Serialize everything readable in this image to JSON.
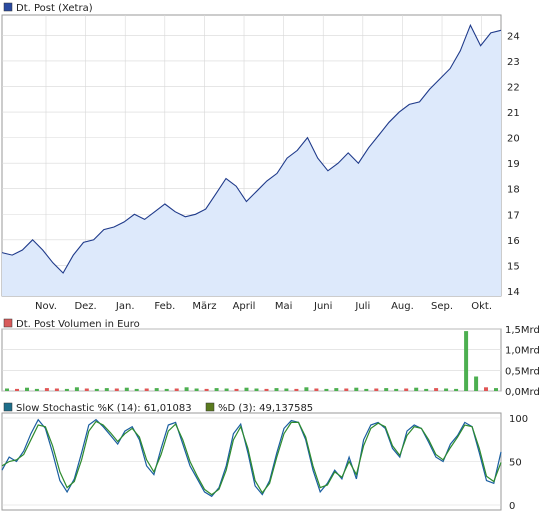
{
  "colors": {
    "price_line": "#1f3a8a",
    "price_fill": "#dde9fb",
    "price_legend_box": "#2a4aa0",
    "volume_legend_box": "#d85a5a",
    "volume_bar_green": "#4caf50",
    "volume_bar_red": "#e05555",
    "stoch_k": "#1a5ea0",
    "stoch_d": "#2e8b2e",
    "stoch_k_legend_box": "#1e6e8a",
    "stoch_d_legend_box": "#5a7a1e",
    "grid": "#d8d8d8",
    "frame": "#9a9a9a"
  },
  "chart_data": [
    {
      "type": "area",
      "title": "Dt. Post (Xetra)",
      "x_tick_labels": [
        "Nov.",
        "Dez.",
        "Jan.",
        "Feb.",
        "März",
        "April",
        "Mai",
        "Juni",
        "Juli",
        "Aug.",
        "Sep.",
        "Okt."
      ],
      "y_ticks": [
        14,
        15,
        16,
        17,
        18,
        19,
        20,
        21,
        22,
        23,
        24
      ],
      "ylim": [
        13.8,
        24.8
      ],
      "grid": true,
      "series": [
        {
          "name": "Dt. Post (Xetra)",
          "x": [
            "Oct",
            "Oct",
            "Nov",
            "Nov",
            "Nov",
            "Nov",
            "Nov",
            "Dez",
            "Dez",
            "Dez",
            "Dez",
            "Jan",
            "Jan",
            "Jan",
            "Jan",
            "Feb",
            "Feb",
            "Feb",
            "Feb",
            "März",
            "März",
            "März",
            "März",
            "April",
            "April",
            "April",
            "April",
            "Mai",
            "Mai",
            "Mai",
            "Mai",
            "Juni",
            "Juni",
            "Juni",
            "Juni",
            "Juli",
            "Juli",
            "Juli",
            "Juli",
            "Aug.",
            "Aug.",
            "Aug.",
            "Aug.",
            "Sep.",
            "Sep.",
            "Sep.",
            "Sep.",
            "Okt.",
            "Okt.",
            "Okt."
          ],
          "values": [
            15.5,
            15.4,
            15.6,
            16.0,
            15.6,
            15.1,
            14.7,
            15.4,
            15.9,
            16.0,
            16.4,
            16.5,
            16.7,
            17.0,
            16.8,
            17.1,
            17.4,
            17.1,
            16.9,
            17.0,
            17.2,
            17.8,
            18.4,
            18.1,
            17.5,
            17.9,
            18.3,
            18.6,
            19.2,
            19.5,
            20.0,
            19.2,
            18.7,
            19.0,
            19.4,
            19.0,
            19.6,
            20.1,
            20.6,
            21.0,
            21.3,
            21.4,
            21.9,
            22.3,
            22.7,
            23.4,
            24.4,
            23.6,
            24.1,
            24.2
          ]
        }
      ]
    },
    {
      "type": "bar",
      "title": "Dt. Post Volumen in Euro",
      "y_ticks": [
        "0,0Mrd",
        "0,5Mrd",
        "1,0Mrd",
        "1,5Mrd"
      ],
      "ylim": [
        0,
        1.5
      ],
      "unit": "Mrd",
      "series": [
        {
          "name": "Dt. Post Volumen in Euro",
          "values": [
            0.06,
            0.05,
            0.08,
            0.05,
            0.07,
            0.06,
            0.05,
            0.09,
            0.06,
            0.05,
            0.07,
            0.06,
            0.08,
            0.05,
            0.06,
            0.07,
            0.05,
            0.06,
            0.09,
            0.06,
            0.05,
            0.07,
            0.06,
            0.05,
            0.08,
            0.06,
            0.05,
            0.07,
            0.06,
            0.05,
            0.09,
            0.06,
            0.05,
            0.07,
            0.06,
            0.08,
            0.05,
            0.06,
            0.07,
            0.05,
            0.06,
            0.08,
            0.05,
            0.07,
            0.06,
            0.05,
            1.45,
            0.35,
            0.09,
            0.07
          ],
          "up": [
            true,
            false,
            true,
            true,
            false,
            false,
            true,
            true,
            false,
            true,
            true,
            false,
            true,
            true,
            false,
            true,
            true,
            false,
            true,
            true,
            false,
            true,
            true,
            false,
            true,
            true,
            false,
            true,
            true,
            false,
            true,
            false,
            true,
            true,
            false,
            true,
            true,
            false,
            true,
            true,
            false,
            true,
            true,
            false,
            true,
            true,
            true,
            true,
            false,
            true
          ]
        }
      ]
    },
    {
      "type": "line",
      "title": "Slow Stochastic",
      "y_ticks": [
        0,
        50,
        100
      ],
      "ylim": [
        0,
        100
      ],
      "series": [
        {
          "name": "Slow Stochastic %K (14): 61,01083",
          "values": [
            40,
            55,
            50,
            62,
            82,
            98,
            88,
            60,
            28,
            15,
            30,
            60,
            92,
            98,
            90,
            80,
            70,
            85,
            90,
            75,
            45,
            35,
            65,
            92,
            95,
            70,
            45,
            30,
            15,
            10,
            20,
            45,
            82,
            93,
            60,
            22,
            12,
            28,
            60,
            88,
            97,
            95,
            75,
            40,
            15,
            25,
            40,
            30,
            55,
            30,
            75,
            92,
            95,
            88,
            65,
            55,
            85,
            92,
            88,
            72,
            55,
            50,
            70,
            80,
            95,
            90,
            60,
            28,
            25,
            61
          ]
        },
        {
          "name": "%D (3): 49,137585",
          "values": [
            45,
            50,
            52,
            58,
            75,
            92,
            90,
            68,
            38,
            20,
            27,
            52,
            85,
            96,
            92,
            83,
            73,
            82,
            88,
            78,
            52,
            38,
            58,
            85,
            93,
            75,
            50,
            33,
            18,
            12,
            18,
            40,
            75,
            90,
            65,
            28,
            14,
            25,
            55,
            82,
            95,
            95,
            78,
            45,
            20,
            23,
            38,
            32,
            50,
            35,
            68,
            88,
            94,
            90,
            68,
            57,
            80,
            90,
            88,
            75,
            58,
            52,
            66,
            78,
            92,
            90,
            65,
            33,
            27,
            49
          ]
        }
      ]
    }
  ]
}
